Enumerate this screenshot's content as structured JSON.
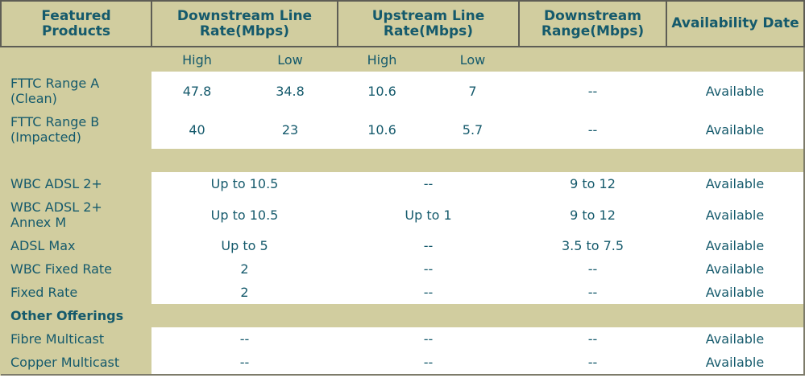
{
  "table": {
    "header": [
      "Featured\nProducts",
      "Downstream Line\nRate(Mbps)",
      "Upstream Line\nRate(Mbps)",
      "Downstream\nRange(Mbps)",
      "Availability Date"
    ],
    "subheader": [
      "High",
      "Low",
      "High",
      "Low"
    ],
    "rows": [
      [
        "FTTC Range A\n(Clean)",
        "47.8",
        "34.8",
        "10.6",
        "7",
        "--",
        "Available"
      ],
      [
        "FTTC Range B\n(Impacted)",
        "40",
        "23",
        "10.6",
        "5.7",
        "--",
        "Available"
      ],
      [
        "WBC ADSL 2+",
        "Up to 10.5",
        "--",
        "9 to 12",
        "Available"
      ],
      [
        "WBC ADSL 2+\nAnnex M",
        "Up to 10.5",
        "Up to 1",
        "9 to 12",
        "Available"
      ],
      [
        "ADSL Max",
        "Up to 5",
        "--",
        "3.5 to 7.5",
        "Available"
      ],
      [
        "WBC Fixed Rate",
        "2",
        "--",
        "--",
        "Available"
      ],
      [
        "Fixed Rate",
        "2",
        "--",
        "--",
        "Available"
      ]
    ],
    "section": "Other Offerings",
    "other_rows": [
      [
        "Fibre Multicast",
        "--",
        "--",
        "--",
        "Available"
      ],
      [
        "Copper Multicast",
        "--",
        "--",
        "--",
        "Available"
      ]
    ]
  }
}
